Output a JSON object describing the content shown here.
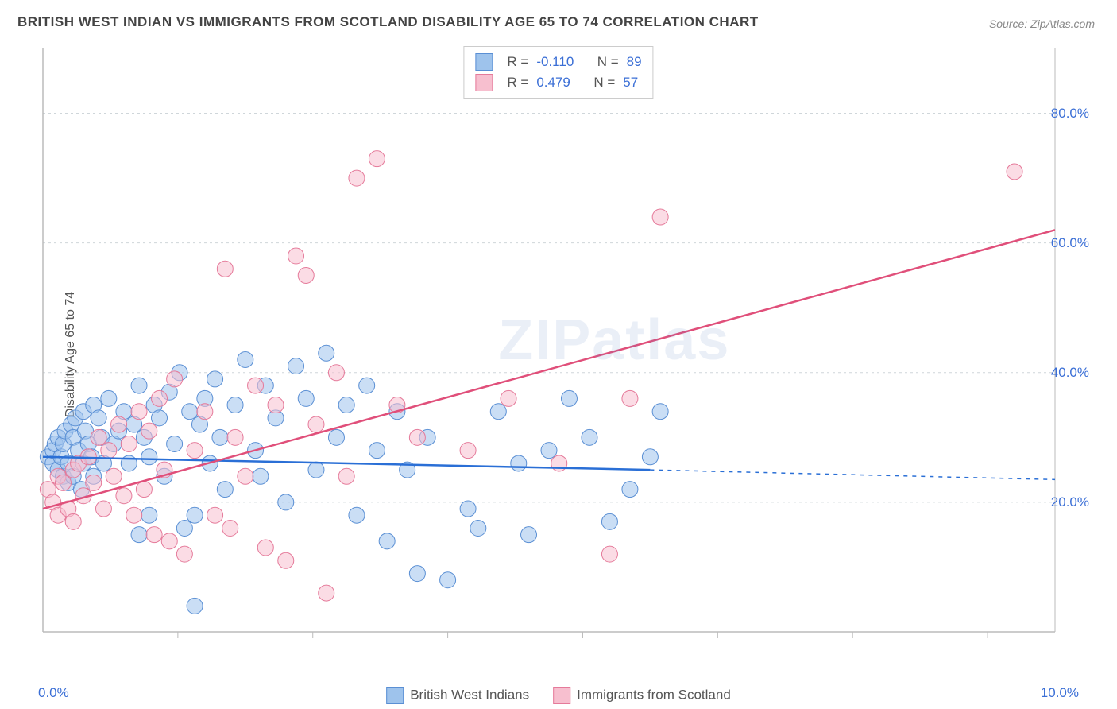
{
  "title": "BRITISH WEST INDIAN VS IMMIGRANTS FROM SCOTLAND DISABILITY AGE 65 TO 74 CORRELATION CHART",
  "source": "Source: ZipAtlas.com",
  "ylabel": "Disability Age 65 to 74",
  "watermark_bold": "ZIP",
  "watermark_rest": "atlas",
  "chart": {
    "type": "scatter",
    "background_color": "#ffffff",
    "grid_color": "#cfd6da",
    "axis_color": "#bbbbbb",
    "xlim": [
      0,
      10
    ],
    "ylim": [
      0,
      90
    ],
    "x_ticks": [
      0,
      10
    ],
    "x_tick_labels": [
      "0.0%",
      "10.0%"
    ],
    "y_ticks": [
      20,
      40,
      60,
      80
    ],
    "y_tick_labels": [
      "20.0%",
      "40.0%",
      "60.0%",
      "80.0%"
    ],
    "marker_radius": 10,
    "marker_opacity": 0.55,
    "line_width": 2.5,
    "series": [
      {
        "name": "British West Indians",
        "color_fill": "#9ec3ec",
        "color_stroke": "#5a8fd4",
        "line_color": "#2a6fd6",
        "R": "-0.110",
        "N": "89",
        "trend": {
          "x1": 0,
          "y1": 27,
          "x2": 6.0,
          "y2": 25,
          "x2_dash": 10,
          "y2_dash": 23.5
        },
        "points": [
          [
            0.05,
            27
          ],
          [
            0.1,
            26
          ],
          [
            0.1,
            28
          ],
          [
            0.12,
            29
          ],
          [
            0.15,
            25
          ],
          [
            0.15,
            30
          ],
          [
            0.18,
            27
          ],
          [
            0.2,
            24
          ],
          [
            0.2,
            29
          ],
          [
            0.22,
            31
          ],
          [
            0.25,
            23
          ],
          [
            0.25,
            26
          ],
          [
            0.28,
            32
          ],
          [
            0.3,
            24
          ],
          [
            0.3,
            30
          ],
          [
            0.32,
            33
          ],
          [
            0.35,
            28
          ],
          [
            0.38,
            22
          ],
          [
            0.4,
            26
          ],
          [
            0.4,
            34
          ],
          [
            0.42,
            31
          ],
          [
            0.45,
            29
          ],
          [
            0.48,
            27
          ],
          [
            0.5,
            35
          ],
          [
            0.5,
            24
          ],
          [
            0.55,
            33
          ],
          [
            0.58,
            30
          ],
          [
            0.6,
            26
          ],
          [
            0.65,
            36
          ],
          [
            0.7,
            29
          ],
          [
            0.75,
            31
          ],
          [
            0.8,
            34
          ],
          [
            0.85,
            26
          ],
          [
            0.9,
            32
          ],
          [
            0.95,
            38
          ],
          [
            1.0,
            30
          ],
          [
            1.05,
            27
          ],
          [
            1.1,
            35
          ],
          [
            1.15,
            33
          ],
          [
            1.2,
            24
          ],
          [
            1.25,
            37
          ],
          [
            1.3,
            29
          ],
          [
            1.35,
            40
          ],
          [
            1.4,
            16
          ],
          [
            1.45,
            34
          ],
          [
            1.5,
            18
          ],
          [
            1.55,
            32
          ],
          [
            1.6,
            36
          ],
          [
            1.65,
            26
          ],
          [
            1.7,
            39
          ],
          [
            1.75,
            30
          ],
          [
            1.8,
            22
          ],
          [
            1.9,
            35
          ],
          [
            2.0,
            42
          ],
          [
            2.1,
            28
          ],
          [
            2.2,
            38
          ],
          [
            2.3,
            33
          ],
          [
            2.4,
            20
          ],
          [
            2.5,
            41
          ],
          [
            2.6,
            36
          ],
          [
            2.7,
            25
          ],
          [
            2.8,
            43
          ],
          [
            2.9,
            30
          ],
          [
            3.0,
            35
          ],
          [
            3.1,
            18
          ],
          [
            3.2,
            38
          ],
          [
            3.3,
            28
          ],
          [
            3.4,
            14
          ],
          [
            3.5,
            34
          ],
          [
            3.7,
            9
          ],
          [
            3.8,
            30
          ],
          [
            4.0,
            8
          ],
          [
            4.2,
            19
          ],
          [
            4.3,
            16
          ],
          [
            4.5,
            34
          ],
          [
            4.7,
            26
          ],
          [
            4.8,
            15
          ],
          [
            5.0,
            28
          ],
          [
            5.2,
            36
          ],
          [
            5.4,
            30
          ],
          [
            5.6,
            17
          ],
          [
            5.8,
            22
          ],
          [
            6.0,
            27
          ],
          [
            6.1,
            34
          ],
          [
            1.5,
            4
          ],
          [
            0.95,
            15
          ],
          [
            1.05,
            18
          ],
          [
            2.15,
            24
          ],
          [
            3.6,
            25
          ]
        ]
      },
      {
        "name": "Immigrants from Scotland",
        "color_fill": "#f7bfcf",
        "color_stroke": "#e57a9a",
        "line_color": "#e04f7a",
        "R": "0.479",
        "N": "57",
        "trend": {
          "x1": 0,
          "y1": 19,
          "x2": 10,
          "y2": 62,
          "x2_dash": 10,
          "y2_dash": 62
        },
        "points": [
          [
            0.05,
            22
          ],
          [
            0.1,
            20
          ],
          [
            0.15,
            24
          ],
          [
            0.15,
            18
          ],
          [
            0.2,
            23
          ],
          [
            0.25,
            19
          ],
          [
            0.3,
            25
          ],
          [
            0.3,
            17
          ],
          [
            0.35,
            26
          ],
          [
            0.4,
            21
          ],
          [
            0.45,
            27
          ],
          [
            0.5,
            23
          ],
          [
            0.55,
            30
          ],
          [
            0.6,
            19
          ],
          [
            0.65,
            28
          ],
          [
            0.7,
            24
          ],
          [
            0.75,
            32
          ],
          [
            0.8,
            21
          ],
          [
            0.85,
            29
          ],
          [
            0.9,
            18
          ],
          [
            0.95,
            34
          ],
          [
            1.0,
            22
          ],
          [
            1.05,
            31
          ],
          [
            1.1,
            15
          ],
          [
            1.15,
            36
          ],
          [
            1.2,
            25
          ],
          [
            1.25,
            14
          ],
          [
            1.3,
            39
          ],
          [
            1.4,
            12
          ],
          [
            1.5,
            28
          ],
          [
            1.6,
            34
          ],
          [
            1.7,
            18
          ],
          [
            1.8,
            56
          ],
          [
            1.85,
            16
          ],
          [
            1.9,
            30
          ],
          [
            2.0,
            24
          ],
          [
            2.1,
            38
          ],
          [
            2.2,
            13
          ],
          [
            2.3,
            35
          ],
          [
            2.4,
            11
          ],
          [
            2.5,
            58
          ],
          [
            2.6,
            55
          ],
          [
            2.7,
            32
          ],
          [
            2.8,
            6
          ],
          [
            2.9,
            40
          ],
          [
            3.0,
            24
          ],
          [
            3.1,
            70
          ],
          [
            3.3,
            73
          ],
          [
            3.5,
            35
          ],
          [
            3.7,
            30
          ],
          [
            4.2,
            28
          ],
          [
            4.6,
            36
          ],
          [
            5.1,
            26
          ],
          [
            5.6,
            12
          ],
          [
            5.8,
            36
          ],
          [
            6.1,
            64
          ],
          [
            9.6,
            71
          ]
        ]
      }
    ]
  },
  "bottom_legend": [
    {
      "label": "British West Indians",
      "fill": "#9ec3ec",
      "stroke": "#5a8fd4"
    },
    {
      "label": "Immigrants from Scotland",
      "fill": "#f7bfcf",
      "stroke": "#e57a9a"
    }
  ],
  "top_legend_labels": {
    "R": "R =",
    "N": "N ="
  }
}
